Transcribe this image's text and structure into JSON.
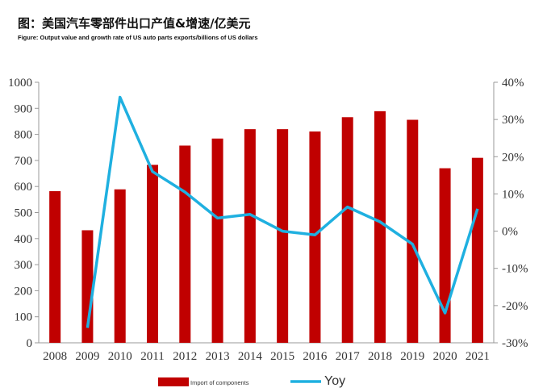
{
  "chart_data": {
    "type": "bar+line",
    "title": "图：美国汽车零部件出口产值&增速/亿美元",
    "subtitle": "Figure: Output value and growth rate of US auto parts exports/billions of US dollars",
    "categories": [
      "2008",
      "2009",
      "2010",
      "2011",
      "2012",
      "2013",
      "2014",
      "2015",
      "2016",
      "2017",
      "2018",
      "2019",
      "2020",
      "2021"
    ],
    "series": [
      {
        "name": "Import of components",
        "type": "bar",
        "axis": "left",
        "color": "#c00000",
        "values": [
          582,
          432,
          589,
          683,
          757,
          784,
          820,
          820,
          811,
          866,
          889,
          856,
          670,
          710
        ]
      },
      {
        "name": "Yoy",
        "type": "line",
        "axis": "right",
        "color": "#1fb0e0",
        "values": [
          null,
          -26,
          36,
          16,
          10.5,
          3.5,
          4.5,
          0,
          -1,
          6.5,
          2.5,
          -3.5,
          -22,
          6
        ]
      }
    ],
    "left_axis": {
      "ylim": [
        0,
        1000
      ],
      "ticks": [
        "0",
        "100",
        "200",
        "300",
        "400",
        "500",
        "600",
        "700",
        "800",
        "900",
        "1000"
      ]
    },
    "right_axis": {
      "ylim": [
        -30,
        40
      ],
      "ticks": [
        "-30%",
        "-20%",
        "-10%",
        "0%",
        "10%",
        "20%",
        "30%",
        "40%"
      ]
    },
    "legend": {
      "position": "bottom",
      "items": [
        "Import of components",
        "Yoy"
      ]
    },
    "grid": false
  }
}
